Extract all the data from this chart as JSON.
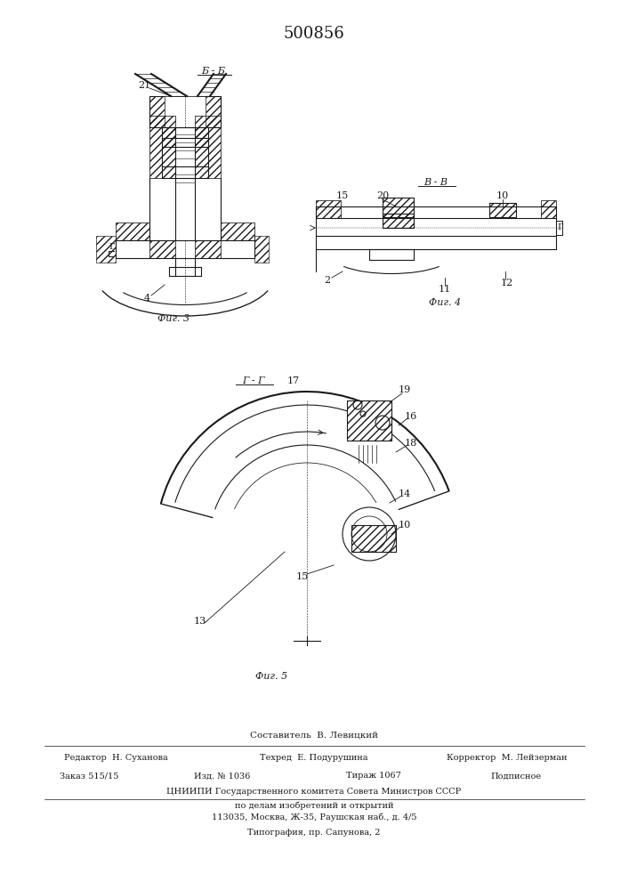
{
  "patent_number": "500856",
  "background_color": "#ffffff",
  "line_color": "#1a1a1a",
  "fig_width": 7.07,
  "fig_height": 10.0,
  "dpi": 100,
  "footer": {
    "sostavitel": "Составитель  В. Левицкий",
    "editor_label": "Редактор  Н. Суханова",
    "tehred_label": "Техред  Е. Подурушина",
    "korrektor_label": "Корректор  М. Лейзерман",
    "zakaz": "Заказ 515/15",
    "izd": "Изд. № 1036",
    "tirazh": "Тираж 1067",
    "podpisnoe": "Подписное",
    "tsniip_line1": "ЦНИИПИ Государственного комитета Совета Министров СССР",
    "tsniip_line2": "по делам изобретений и открытий",
    "tsniip_line3": "113035, Москва, Ж-35, Раушская наб., д. 4/5",
    "tipog_line": "Типография, пр. Сапунова, 2"
  }
}
